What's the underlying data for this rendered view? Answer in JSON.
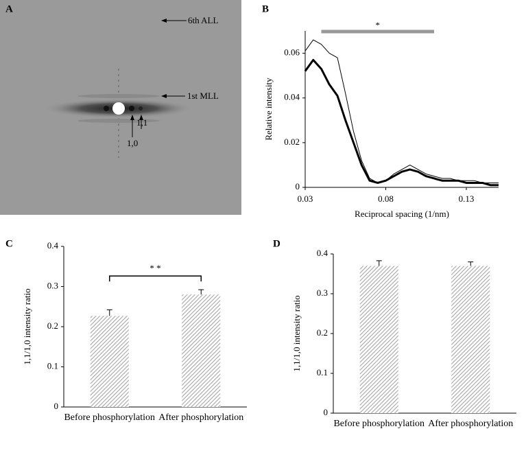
{
  "panel_a": {
    "label": "A",
    "annotations": [
      "6th ALL",
      "1st MLL",
      "1,0",
      "1,1"
    ]
  },
  "chart_data": [
    {
      "panel": "B",
      "type": "line",
      "xlabel": "Reciprocal spacing (1/nm)",
      "ylabel": "Relative intensity",
      "x": [
        0.03,
        0.035,
        0.04,
        0.045,
        0.05,
        0.055,
        0.06,
        0.065,
        0.07,
        0.075,
        0.08,
        0.085,
        0.09,
        0.095,
        0.1,
        0.105,
        0.11,
        0.115,
        0.12,
        0.125,
        0.13,
        0.135,
        0.14,
        0.145,
        0.15
      ],
      "series": [
        {
          "color": "#000000",
          "width": 1,
          "values": [
            0.061,
            0.066,
            0.064,
            0.06,
            0.058,
            0.042,
            0.025,
            0.012,
            0.004,
            0.002,
            0.003,
            0.006,
            0.008,
            0.01,
            0.008,
            0.006,
            0.005,
            0.004,
            0.004,
            0.003,
            0.003,
            0.003,
            0.002,
            0.002,
            0.002
          ]
        },
        {
          "color": "#000000",
          "width": 3,
          "values": [
            0.052,
            0.057,
            0.053,
            0.046,
            0.041,
            0.03,
            0.02,
            0.01,
            0.003,
            0.002,
            0.003,
            0.005,
            0.007,
            0.008,
            0.007,
            0.005,
            0.004,
            0.003,
            0.003,
            0.003,
            0.002,
            0.002,
            0.002,
            0.001,
            0.001
          ]
        }
      ],
      "xlim": [
        0.03,
        0.15
      ],
      "xticks": [
        0.03,
        0.08,
        0.13
      ],
      "ylim": [
        0,
        0.07
      ],
      "yticks": [
        0,
        0.02,
        0.04,
        0.06
      ],
      "annotation": "*",
      "annotation_span": [
        0.04,
        0.11
      ],
      "annotation_color": "#999999"
    },
    {
      "panel": "C",
      "type": "bar",
      "ylabel": "1,1/1,0 intensity ratio",
      "categories": [
        "Before phosphorylation",
        "After phosphorylation"
      ],
      "values": [
        0.227,
        0.28
      ],
      "errors": [
        0.015,
        0.012
      ],
      "color": "#a6a6a6",
      "ylim": [
        0,
        0.4
      ],
      "yticks": [
        0,
        0.1,
        0.2,
        0.3,
        0.4
      ],
      "annotation": "* *"
    },
    {
      "panel": "D",
      "type": "bar",
      "ylabel": "1,1/1,0 intensity ratio",
      "categories": [
        "Before phosphorylation",
        "After phosphorylation"
      ],
      "values": [
        0.37,
        0.37
      ],
      "errors": [
        0.013,
        0.01
      ],
      "color": "#a6a6a6",
      "ylim": [
        0,
        0.4
      ],
      "yticks": [
        0,
        0.1,
        0.2,
        0.3,
        0.4
      ]
    }
  ]
}
